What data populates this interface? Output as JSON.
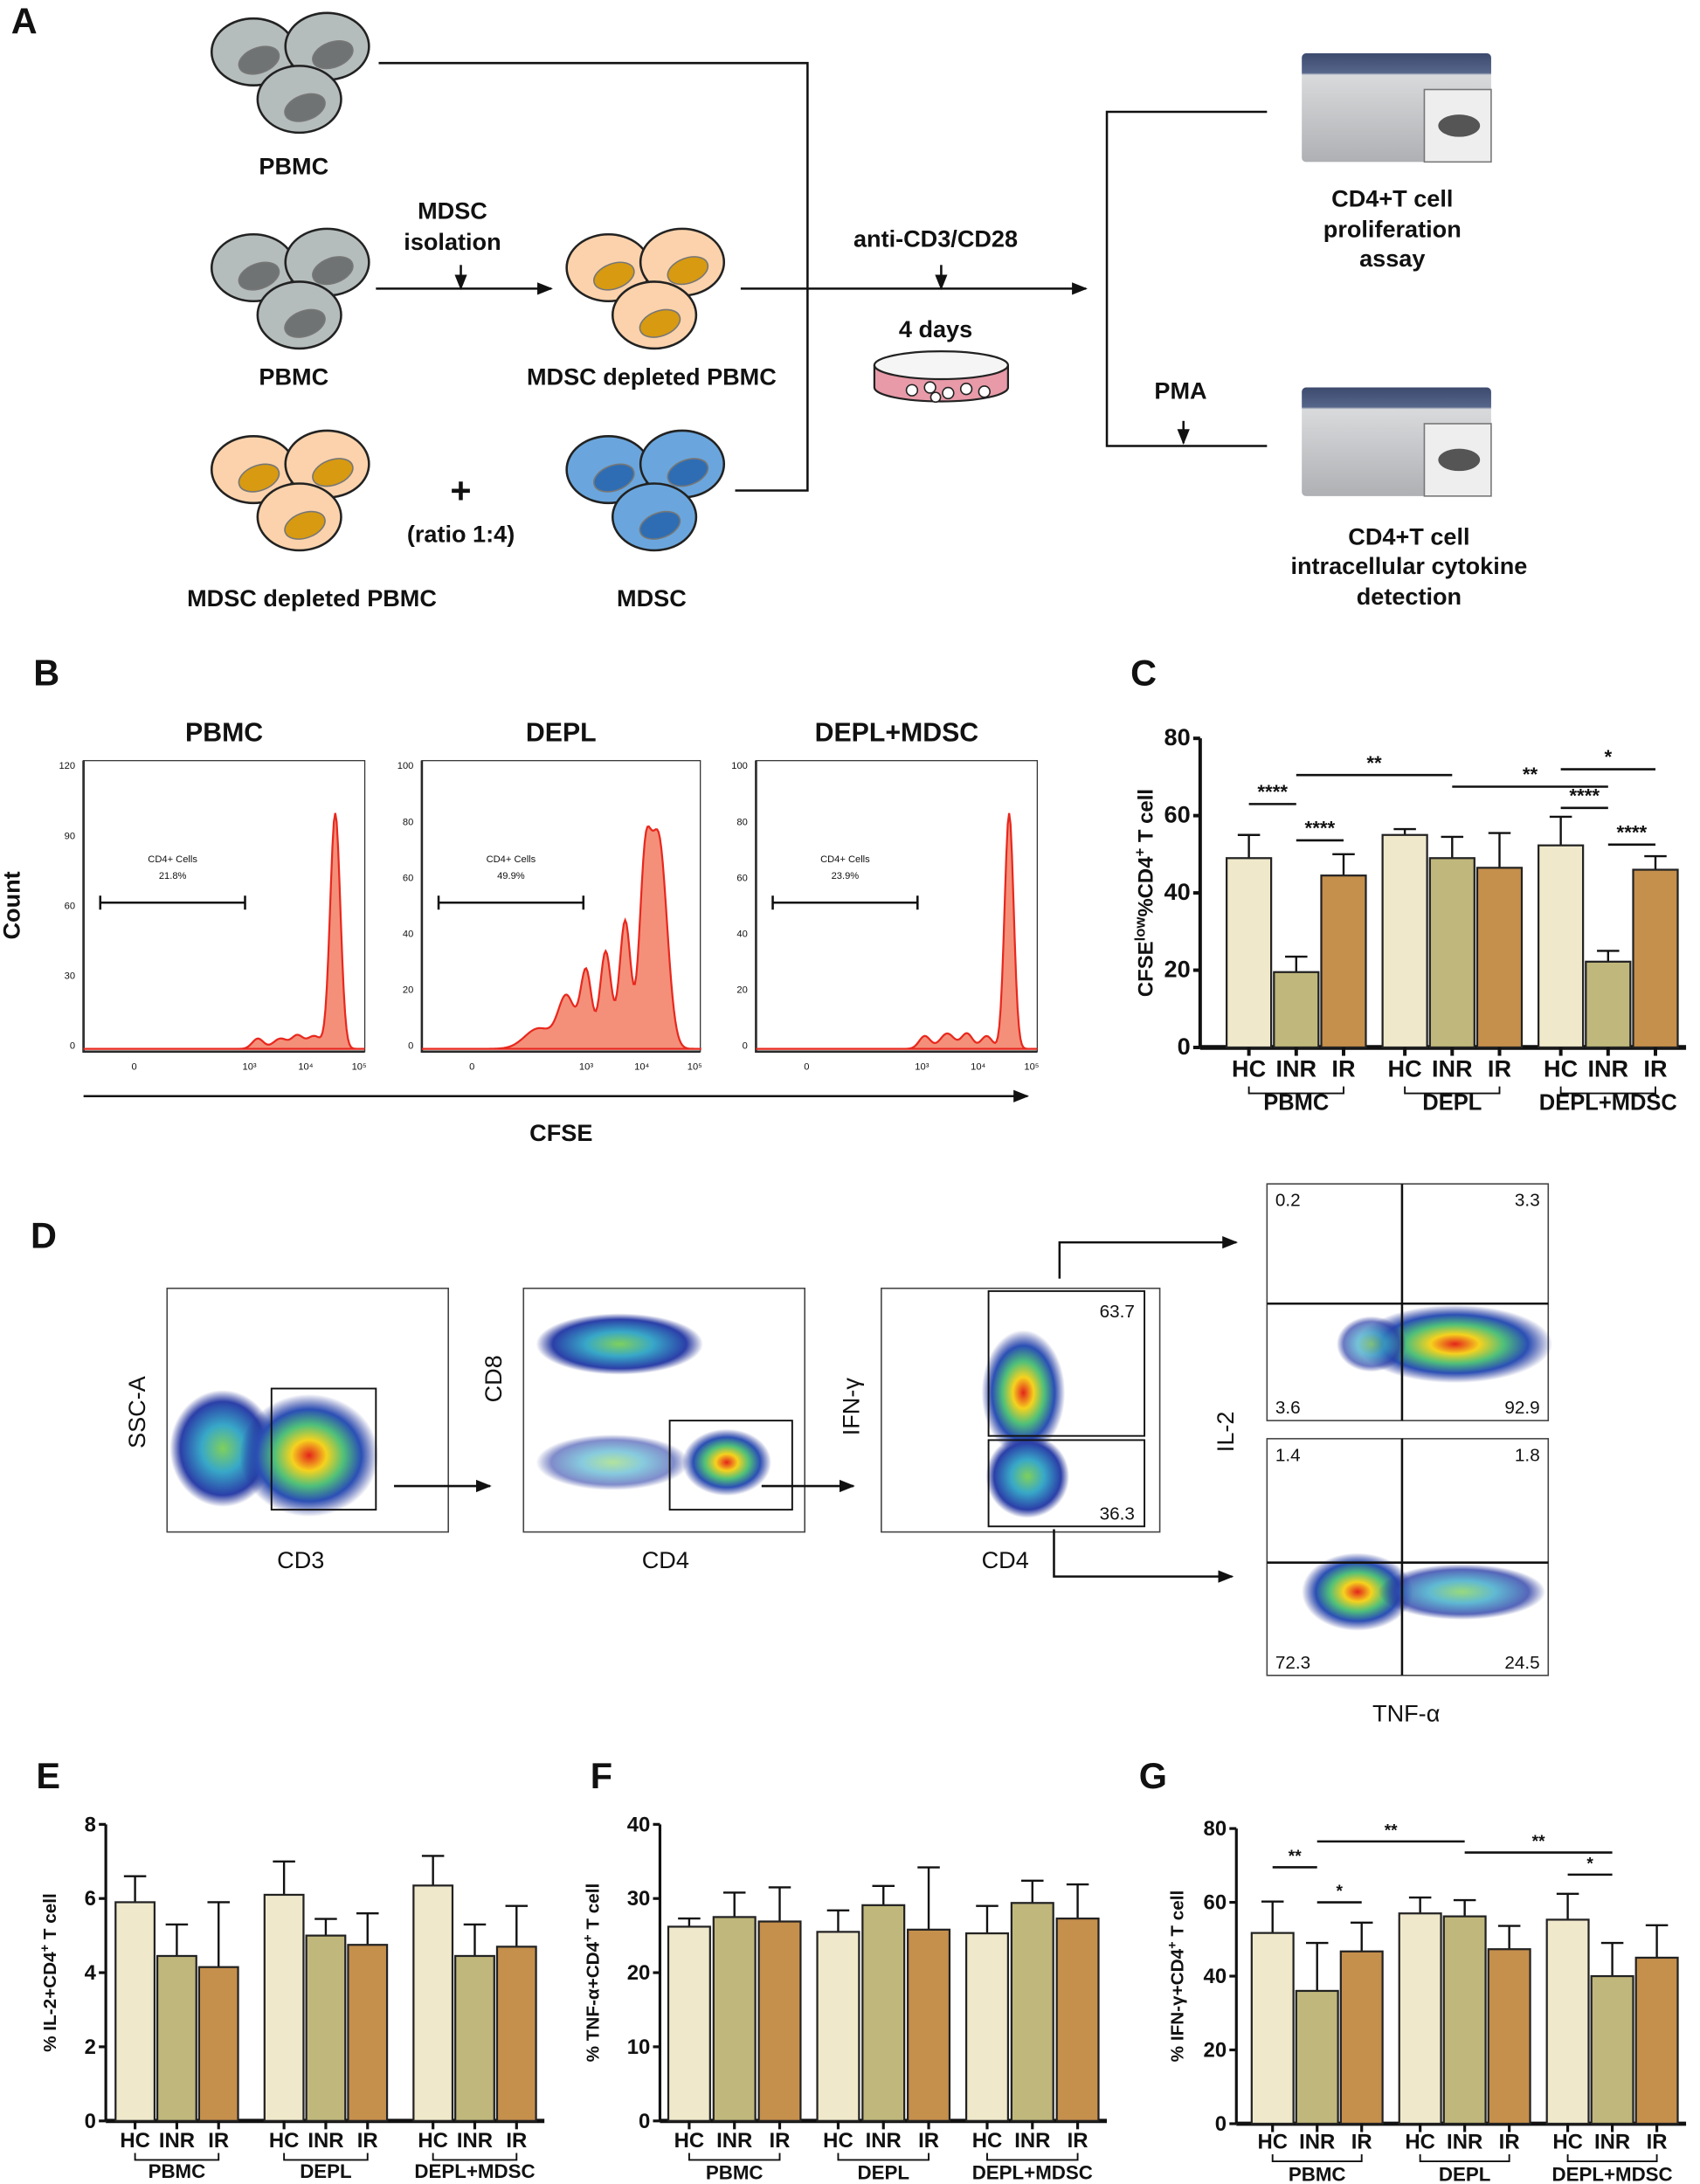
{
  "panels": {
    "a": "A",
    "b": "B",
    "c": "C",
    "d": "D",
    "e": "E",
    "f": "F",
    "g": "G"
  },
  "panel_a": {
    "pbmc1": "PBMC",
    "pbmc2": "PBMC",
    "mdsc_isolation_1": "MDSC",
    "mdsc_isolation_2": "isolation",
    "depleted1": "MDSC depleted PBMC",
    "plus": "+",
    "ratio": "(ratio 1:4)",
    "depleted2": "MDSC depleted PBMC",
    "mdsc": "MDSC",
    "stim": "anti-CD3/CD28",
    "days": "4 days",
    "pma": "PMA",
    "assay1": [
      "CD4+T cell",
      "proliferation",
      "assay"
    ],
    "assay2": [
      "CD4+T cell",
      "intracellular cytokine",
      "detection"
    ]
  },
  "panel_b": {
    "ylabel": "Count",
    "xlabel": "CFSE",
    "x_ticks": [
      "0",
      "10³",
      "10⁴",
      "10⁵"
    ],
    "plots": [
      {
        "title": "PBMC",
        "gate": "CD4+ Cells",
        "pct": "21.8%",
        "y_ticks": [
          "0",
          "30",
          "60",
          "90",
          "120"
        ]
      },
      {
        "title": "DEPL",
        "gate": "CD4+ Cells",
        "pct": "49.9%",
        "y_ticks": [
          "0",
          "20",
          "40",
          "60",
          "80",
          "100"
        ]
      },
      {
        "title": "DEPL+MDSC",
        "gate": "CD4+ Cells",
        "pct": "23.9%",
        "y_ticks": [
          "0",
          "20",
          "40",
          "60",
          "80",
          "100"
        ]
      }
    ]
  },
  "panel_d": {
    "plot1": {
      "x": "CD3",
      "y": "SSC-A"
    },
    "plot2": {
      "x": "CD4",
      "y": "CD8"
    },
    "plot3": {
      "x": "CD4",
      "y": "IFN-γ",
      "upper": "63.7",
      "lower": "36.3"
    },
    "quad_top": {
      "ul": "0.2",
      "ur": "3.3",
      "ll": "3.6",
      "lr": "92.9"
    },
    "quad_bottom": {
      "ul": "1.4",
      "ur": "1.8",
      "ll": "72.3",
      "lr": "24.5"
    },
    "quad_ylabel": "IL-2",
    "quad_xlabel": "TNF-α"
  },
  "colors": {
    "HC": "#efe8cb",
    "INR": "#c0b77c",
    "IR": "#c58f4c",
    "histogram": "#f4907a",
    "histogram_line": "#e8281e"
  },
  "chart_data": [
    {
      "id": "C",
      "type": "bar",
      "ylabel_parts": [
        "CFSE",
        "low",
        "%CD4",
        "+",
        " T cell"
      ],
      "ylim": [
        0,
        80
      ],
      "y_ticks": [
        "0",
        "20",
        "40",
        "60",
        "80"
      ],
      "categories": [
        "HC",
        "INR",
        "IR"
      ],
      "groups": [
        "PBMC",
        "DEPL",
        "DEPL+MDSC"
      ],
      "series": [
        {
          "name": "PBMC",
          "values": [
            49,
            19.5,
            44.5
          ],
          "err_top": [
            55,
            23.5,
            50
          ]
        },
        {
          "name": "DEPL",
          "values": [
            55,
            49,
            46.5
          ],
          "err_top": [
            56.5,
            54.5,
            55.5
          ]
        },
        {
          "name": "DEPL+MDSC",
          "values": [
            52.3,
            22.2,
            46
          ],
          "err_top": [
            59.7,
            25,
            49.5
          ]
        }
      ],
      "significance": [
        {
          "from": [
            0,
            0
          ],
          "to": [
            0,
            1
          ],
          "y": 63,
          "label": "****"
        },
        {
          "from": [
            0,
            1
          ],
          "to": [
            0,
            2
          ],
          "y": 53.6,
          "label": "****"
        },
        {
          "from": [
            0,
            1
          ],
          "to": [
            1,
            1
          ],
          "y": 70.5,
          "label": "**"
        },
        {
          "from": [
            1,
            1
          ],
          "to": [
            2,
            1
          ],
          "y": 67.5,
          "label": "**"
        },
        {
          "from": [
            2,
            0
          ],
          "to": [
            2,
            2
          ],
          "y": 72,
          "label": "*"
        },
        {
          "from": [
            2,
            0
          ],
          "to": [
            2,
            1
          ],
          "y": 62,
          "label": "****"
        },
        {
          "from": [
            2,
            1
          ],
          "to": [
            2,
            2
          ],
          "y": 52.5,
          "label": "****"
        }
      ]
    },
    {
      "id": "E",
      "type": "bar",
      "ylabel_parts": [
        "% IL-2+CD4",
        "+",
        " T cell"
      ],
      "ylim": [
        0,
        8
      ],
      "y_ticks": [
        "0",
        "2",
        "4",
        "6",
        "8"
      ],
      "categories": [
        "HC",
        "INR",
        "IR"
      ],
      "groups": [
        "PBMC",
        "DEPL",
        "DEPL+MDSC"
      ],
      "series": [
        {
          "name": "PBMC",
          "values": [
            5.9,
            4.45,
            4.15
          ],
          "err_top": [
            6.6,
            5.3,
            5.9
          ]
        },
        {
          "name": "DEPL",
          "values": [
            6.1,
            5.0,
            4.75
          ],
          "err_top": [
            7.0,
            5.45,
            5.6
          ]
        },
        {
          "name": "DEPL+MDSC",
          "values": [
            6.35,
            4.45,
            4.7
          ],
          "err_top": [
            7.15,
            5.3,
            5.8
          ]
        }
      ],
      "significance": []
    },
    {
      "id": "F",
      "type": "bar",
      "ylabel_parts": [
        "% TNF-α+CD4",
        "+",
        " T cell"
      ],
      "ylim": [
        0,
        40
      ],
      "y_ticks": [
        "0",
        "10",
        "20",
        "30",
        "40"
      ],
      "categories": [
        "HC",
        "INR",
        "IR"
      ],
      "groups": [
        "PBMC",
        "DEPL",
        "DEPL+MDSC"
      ],
      "series": [
        {
          "name": "PBMC",
          "values": [
            26.2,
            27.5,
            26.9
          ],
          "err_top": [
            27.3,
            30.8,
            31.5
          ]
        },
        {
          "name": "DEPL",
          "values": [
            25.5,
            29.1,
            25.8
          ],
          "err_top": [
            28.4,
            31.7,
            34.2
          ]
        },
        {
          "name": "DEPL+MDSC",
          "values": [
            25.3,
            29.4,
            27.3
          ],
          "err_top": [
            29.0,
            32.4,
            31.9
          ]
        }
      ],
      "significance": []
    },
    {
      "id": "G",
      "type": "bar",
      "ylabel_parts": [
        "% IFN-γ+CD4",
        "+",
        " T cell"
      ],
      "ylim": [
        0,
        80
      ],
      "y_ticks": [
        "0",
        "20",
        "40",
        "60",
        "80"
      ],
      "categories": [
        "HC",
        "INR",
        "IR"
      ],
      "groups": [
        "PBMC",
        "DEPL",
        "DEPL+MDSC"
      ],
      "series": [
        {
          "name": "PBMC",
          "values": [
            51.7,
            36,
            46.7
          ],
          "err_top": [
            60.2,
            49,
            54.5
          ]
        },
        {
          "name": "DEPL",
          "values": [
            57,
            56.2,
            47.3
          ],
          "err_top": [
            61.3,
            60.6,
            53.6
          ]
        },
        {
          "name": "DEPL+MDSC",
          "values": [
            55.3,
            40,
            45
          ],
          "err_top": [
            62.3,
            49,
            53.8
          ]
        }
      ],
      "significance": [
        {
          "from": [
            0,
            0
          ],
          "to": [
            0,
            1
          ],
          "y": 69.5,
          "label": "**"
        },
        {
          "from": [
            0,
            1
          ],
          "to": [
            0,
            2
          ],
          "y": 60,
          "label": "*"
        },
        {
          "from": [
            0,
            1
          ],
          "to": [
            1,
            1
          ],
          "y": 76.5,
          "label": "**"
        },
        {
          "from": [
            1,
            1
          ],
          "to": [
            2,
            1
          ],
          "y": 73.5,
          "label": "**"
        },
        {
          "from": [
            2,
            0
          ],
          "to": [
            2,
            1
          ],
          "y": 67.5,
          "label": "*"
        }
      ]
    }
  ]
}
